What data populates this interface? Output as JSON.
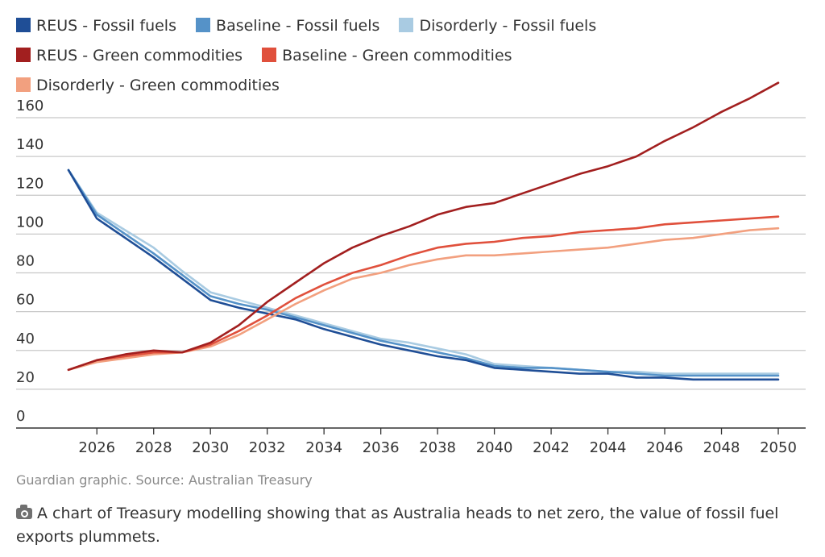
{
  "chart_data": {
    "type": "line",
    "title": "",
    "xlabel": "",
    "ylabel": "",
    "xlim": [
      2025,
      2050
    ],
    "ylim": [
      0,
      175
    ],
    "y_ticks": [
      0,
      20,
      40,
      60,
      80,
      100,
      120,
      140,
      160
    ],
    "x_ticks": [
      2026,
      2028,
      2030,
      2032,
      2034,
      2036,
      2038,
      2040,
      2042,
      2044,
      2046,
      2048,
      2050
    ],
    "grid": true,
    "legend_position": "top",
    "x": [
      2025,
      2026,
      2027,
      2028,
      2029,
      2030,
      2031,
      2032,
      2033,
      2034,
      2035,
      2036,
      2037,
      2038,
      2039,
      2040,
      2041,
      2042,
      2043,
      2044,
      2045,
      2046,
      2047,
      2048,
      2049,
      2050
    ],
    "series": [
      {
        "name": "REUS - Fossil fuels",
        "color": "#1f4e96",
        "values": [
          133,
          108,
          98,
          88,
          77,
          66,
          62,
          59,
          56,
          51,
          47,
          43,
          40,
          37,
          35,
          31,
          30,
          29,
          28,
          28,
          26,
          26,
          25,
          25,
          25,
          25
        ]
      },
      {
        "name": "Baseline - Fossil fuels",
        "color": "#5592c8",
        "values": [
          133,
          110,
          100,
          90,
          79,
          68,
          64,
          61,
          57,
          53,
          49,
          45,
          42,
          39,
          36,
          32,
          31,
          31,
          30,
          29,
          28,
          27,
          27,
          27,
          27,
          27
        ]
      },
      {
        "name": "Disorderly - Fossil fuels",
        "color": "#a9cbe2",
        "values": [
          133,
          111,
          102,
          93,
          81,
          70,
          66,
          62,
          58,
          54,
          50,
          46,
          44,
          41,
          38,
          33,
          32,
          31,
          30,
          29,
          29,
          28,
          28,
          28,
          28,
          28
        ]
      },
      {
        "name": "REUS - Green commodities",
        "color": "#a21f1f",
        "values": [
          30,
          35,
          38,
          40,
          39,
          44,
          53,
          65,
          75,
          85,
          93,
          99,
          104,
          110,
          114,
          116,
          121,
          126,
          131,
          135,
          140,
          148,
          155,
          163,
          170,
          178
        ]
      },
      {
        "name": "Baseline - Green commodities",
        "color": "#e0503c",
        "values": [
          30,
          35,
          37,
          39,
          39,
          43,
          50,
          58,
          67,
          74,
          80,
          84,
          89,
          93,
          95,
          96,
          98,
          99,
          101,
          102,
          103,
          105,
          106,
          107,
          108,
          109
        ]
      },
      {
        "name": "Disorderly - Green commodities",
        "color": "#f2a07f",
        "values": [
          30,
          34,
          36,
          38,
          39,
          42,
          48,
          56,
          64,
          71,
          77,
          80,
          84,
          87,
          89,
          89,
          90,
          91,
          92,
          93,
          95,
          97,
          98,
          100,
          102,
          103
        ]
      }
    ]
  },
  "legend_entries": [
    {
      "label": "REUS - Fossil fuels",
      "color": "#1f4e96"
    },
    {
      "label": "Baseline - Fossil fuels",
      "color": "#5592c8"
    },
    {
      "label": "Disorderly - Fossil fuels",
      "color": "#a9cbe2"
    },
    {
      "label": "REUS - Green commodities",
      "color": "#a21f1f"
    },
    {
      "label": "Baseline - Green commodities",
      "color": "#e0503c"
    },
    {
      "label": "Disorderly - Green commodities",
      "color": "#f2a07f"
    }
  ],
  "source_text": "Guardian graphic. Source: Australian Treasury",
  "caption": {
    "icon": "camera-icon",
    "text": "A chart of Treasury modelling showing that as Australia heads to net zero, the value of fossil fuel exports plummets."
  },
  "colors": {
    "gridline": "#c8c8c8",
    "axis": "#333333",
    "source": "#8a8a8a"
  }
}
